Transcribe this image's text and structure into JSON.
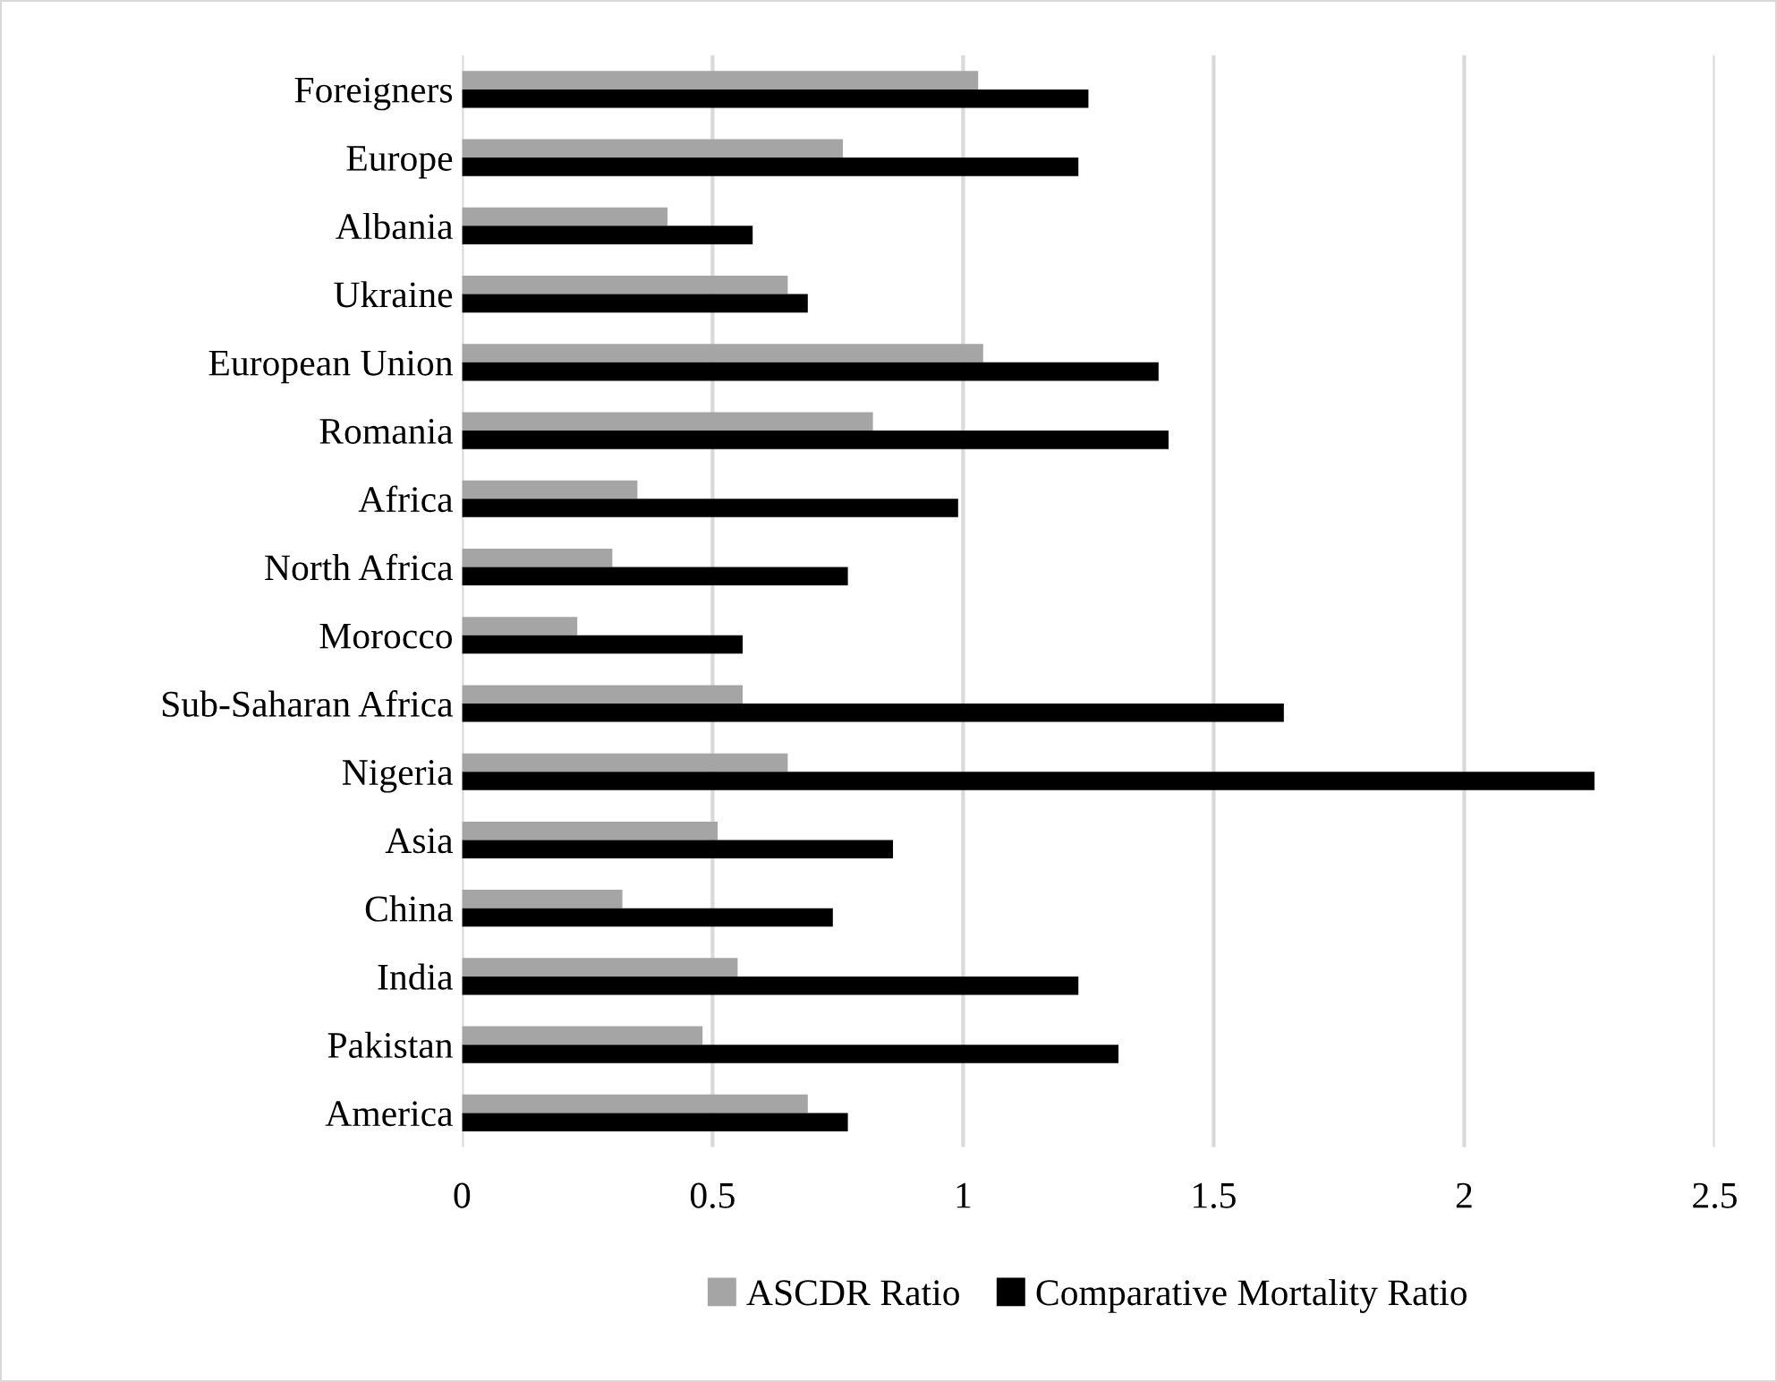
{
  "chart_data": {
    "type": "bar",
    "orientation": "horizontal",
    "categories": [
      "Foreigners",
      "Europe",
      "Albania",
      "Ukraine",
      "European Union",
      "Romania",
      "Africa",
      "North Africa",
      "Morocco",
      "Sub-Saharan Africa",
      "Nigeria",
      "Asia",
      "China",
      "India",
      "Pakistan",
      "America"
    ],
    "series": [
      {
        "name": "ASCDR Ratio",
        "color": "#a5a5a5",
        "values": [
          1.03,
          0.76,
          0.41,
          0.65,
          1.04,
          0.82,
          0.35,
          0.3,
          0.23,
          0.56,
          0.65,
          0.51,
          0.32,
          0.55,
          0.48,
          0.69
        ]
      },
      {
        "name": "Comparative Mortality Ratio",
        "color": "#000000",
        "values": [
          1.25,
          1.23,
          0.58,
          0.69,
          1.39,
          1.41,
          0.99,
          0.77,
          0.56,
          1.64,
          2.26,
          0.86,
          0.74,
          1.23,
          1.31,
          0.77
        ]
      }
    ],
    "xlim": [
      0,
      2.5
    ],
    "xticks": [
      0,
      0.5,
      1,
      1.5,
      2,
      2.5
    ],
    "grid": "x",
    "legend": "bottom"
  }
}
